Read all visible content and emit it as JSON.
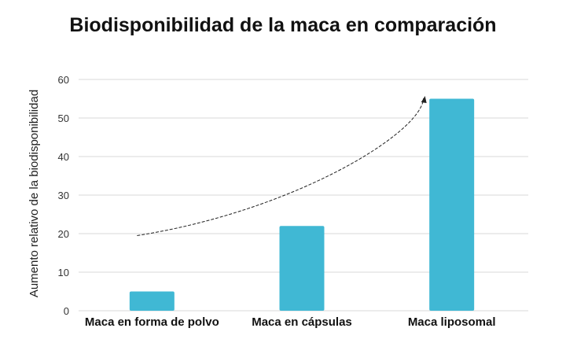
{
  "chart_data": {
    "type": "bar",
    "title": "Biodisponibilidad de la maca en comparación",
    "xlabel": "",
    "ylabel": "Aumento relativo de la biodisponibilidad",
    "categories": [
      "Maca en forma de polvo",
      "Maca en cápsulas",
      "Maca liposomal"
    ],
    "values": [
      5,
      22,
      55
    ],
    "ylim": [
      0,
      60
    ],
    "yticks": [
      0,
      10,
      20,
      30,
      40,
      50,
      60
    ],
    "grid": true,
    "legend": "none",
    "colors": {
      "bar": "#40b8d4",
      "grid": "#d9d9d9",
      "arrow": "#222222"
    },
    "annotations": [
      {
        "type": "dashed-arrow",
        "from": {
          "category": "Maca en forma de polvo",
          "y": 19.5
        },
        "to": {
          "category": "Maca liposomal",
          "y": 55.5
        }
      }
    ]
  }
}
